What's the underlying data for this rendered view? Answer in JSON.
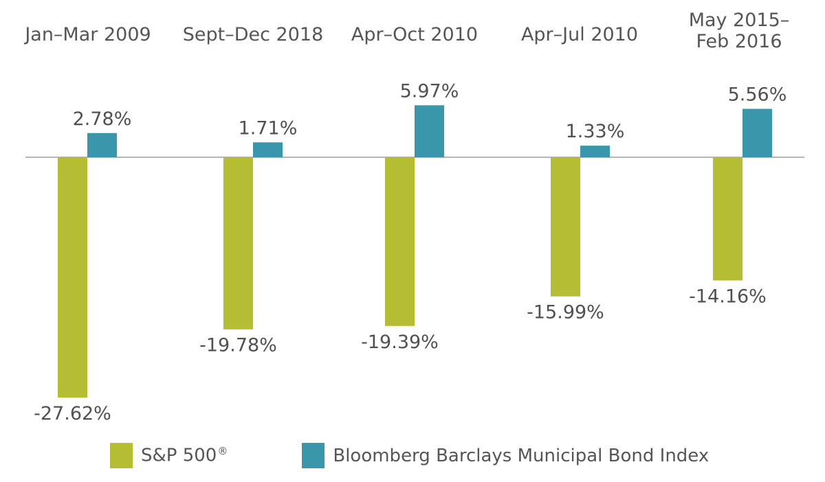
{
  "chart_data": {
    "type": "bar",
    "categories": [
      [
        "Jan–Mar 2009"
      ],
      [
        "Sept–Dec 2018"
      ],
      [
        "Apr–Oct 2010"
      ],
      [
        "Apr–Jul 2010"
      ],
      [
        "May 2015–",
        "Feb 2016"
      ]
    ],
    "series": [
      {
        "name": "S&P 500",
        "name_mark": "®",
        "color": "#b5bd33",
        "values": [
          -27.62,
          -19.78,
          -19.39,
          -15.99,
          -14.16
        ],
        "value_labels": [
          "-27.62%",
          "-19.78%",
          "-19.39%",
          "-15.99%",
          "-14.16%"
        ]
      },
      {
        "name": "Bloomberg Barclays Municipal Bond Index",
        "color": "#3a97ab",
        "values": [
          2.78,
          1.71,
          5.97,
          1.33,
          5.56
        ],
        "value_labels": [
          "2.78%",
          "1.71%",
          "5.97%",
          "1.33%",
          "5.56%"
        ]
      }
    ],
    "axis_line_color": "#8a8a8a",
    "legend": "bottom-left",
    "grid": false
  }
}
